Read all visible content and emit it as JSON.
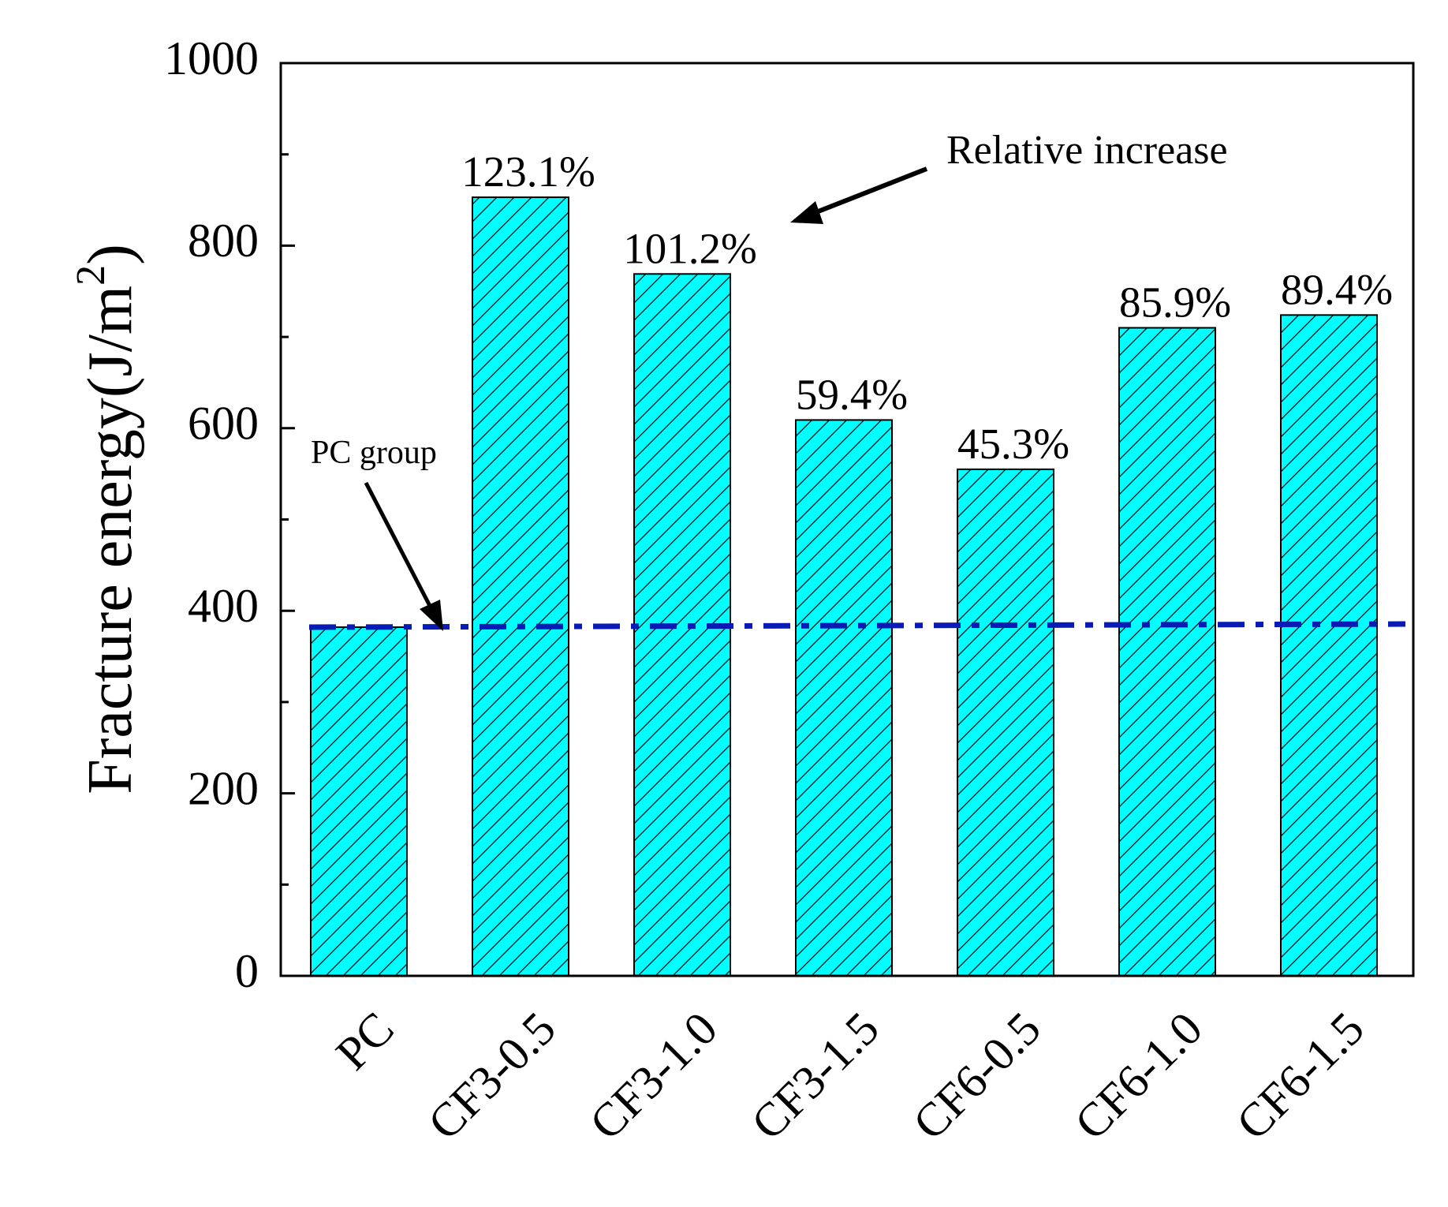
{
  "chart_data": {
    "type": "bar",
    "title": "",
    "xlabel": "",
    "ylabel": "Fracture energy(J/m",
    "ylabel_superscript": "2",
    "ylabel_close": ")",
    "ylim": [
      0,
      1000
    ],
    "yticks": [
      0,
      200,
      400,
      600,
      800,
      1000
    ],
    "categories": [
      "PC",
      "CF3-0.5",
      "CF3-1.0",
      "CF3-1.5",
      "CF6-0.5",
      "CF6-1.0",
      "CF6-1.5"
    ],
    "values": [
      382,
      853,
      769,
      609,
      555,
      710,
      724
    ],
    "bar_labels": [
      "",
      "123.1%",
      "101.2%",
      "59.4%",
      "45.3%",
      "85.9%",
      "89.4%"
    ],
    "bar_fill": "#00FFFF",
    "bar_pattern": "diagonal-hatch",
    "reference_line": {
      "value": 382,
      "color": "#0A1BB5",
      "style": "dash-dot"
    },
    "annotations": [
      {
        "text": "Relative increase",
        "points_to": "CF3-1.0"
      },
      {
        "text": "PC group",
        "points_to": "reference_line"
      }
    ],
    "grid": false
  }
}
